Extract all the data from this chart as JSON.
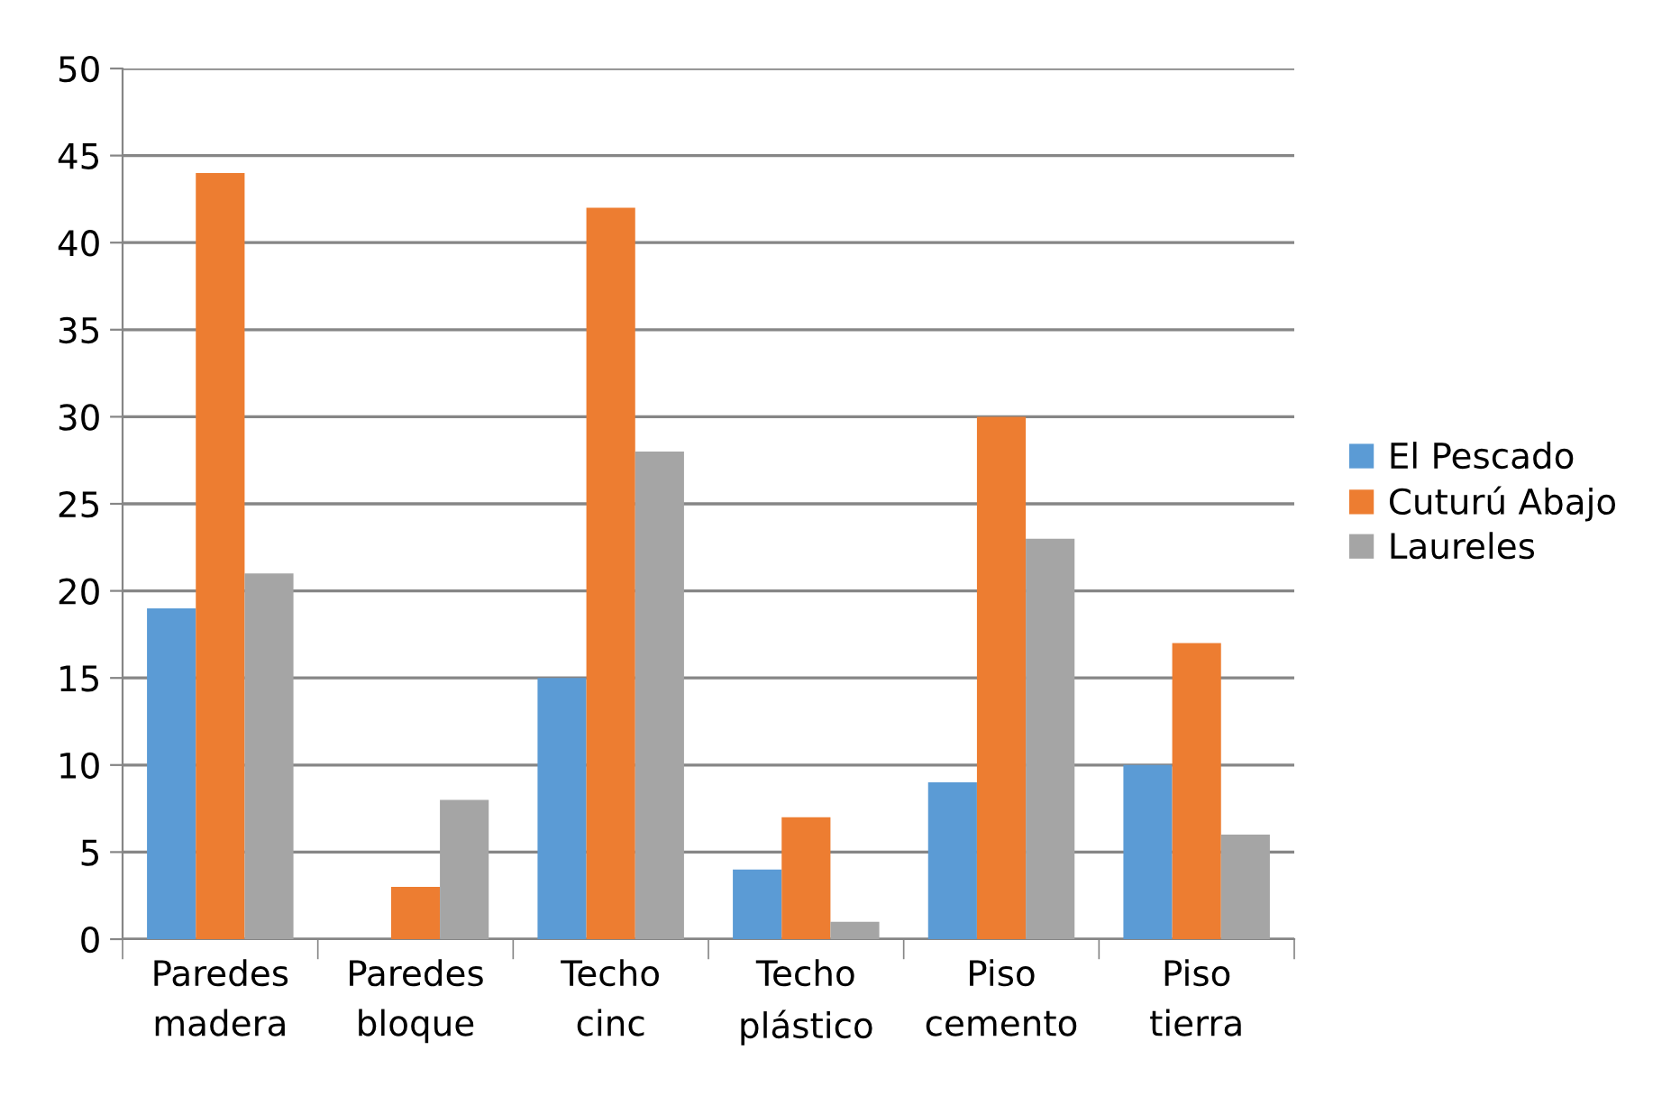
{
  "chart_data": {
    "type": "bar",
    "categories": [
      "Paredes\nmadera",
      "Paredes\nbloque",
      "Techo\ncinc",
      "Techo\nplástico",
      "Piso\ncemento",
      "Piso\ntierra"
    ],
    "series": [
      {
        "name": "El Pescado",
        "color": "#5b9bd5",
        "values": [
          19,
          0,
          15,
          4,
          9,
          10
        ]
      },
      {
        "name": "Cuturú Abajo",
        "color": "#ed7d31",
        "values": [
          44,
          3,
          42,
          7,
          30,
          17
        ]
      },
      {
        "name": "Laureles",
        "color": "#a5a5a5",
        "values": [
          21,
          8,
          28,
          1,
          23,
          6
        ]
      }
    ],
    "ylim": [
      0,
      50
    ],
    "yticks": [
      0,
      5,
      10,
      15,
      20,
      25,
      30,
      35,
      40,
      45,
      50
    ],
    "grid": "y",
    "legend": "right"
  }
}
